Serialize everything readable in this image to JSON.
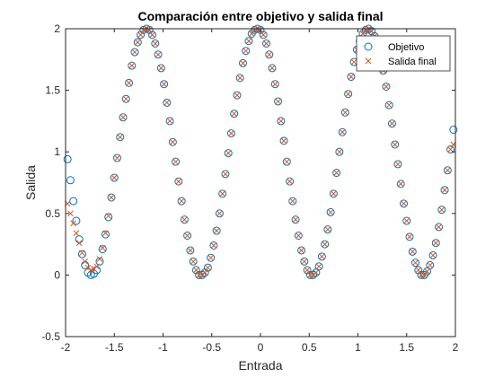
{
  "chart_data": {
    "type": "scatter",
    "title": "Comparación entre objetivo y salida final",
    "xlabel": "Entrada",
    "ylabel": "Salida",
    "xlim": [
      -2,
      2
    ],
    "ylim": [
      -0.5,
      2
    ],
    "x_ticks": [
      "-2",
      "-1.5",
      "-1",
      "-0.5",
      "0",
      "0.5",
      "1",
      "1.5",
      "2"
    ],
    "y_ticks": [
      "-0.5",
      "0",
      "0.5",
      "1",
      "1.5",
      "2"
    ],
    "grid": false,
    "legend_position": "top-right",
    "series": [
      {
        "name": "Objetivo",
        "marker": "circle",
        "color": "#0072BD",
        "x": [
          -1.98,
          -1.95,
          -1.92,
          -1.89,
          -1.86,
          -1.83,
          -1.8,
          -1.77,
          -1.74,
          -1.71,
          -1.68,
          -1.65,
          -1.62,
          -1.59,
          -1.56,
          -1.53,
          -1.5,
          -1.47,
          -1.44,
          -1.41,
          -1.38,
          -1.35,
          -1.32,
          -1.29,
          -1.26,
          -1.23,
          -1.2,
          -1.17,
          -1.14,
          -1.11,
          -1.08,
          -1.05,
          -1.02,
          -0.99,
          -0.96,
          -0.93,
          -0.9,
          -0.87,
          -0.84,
          -0.81,
          -0.78,
          -0.75,
          -0.72,
          -0.69,
          -0.66,
          -0.63,
          -0.6,
          -0.57,
          -0.54,
          -0.51,
          -0.48,
          -0.45,
          -0.42,
          -0.39,
          -0.36,
          -0.33,
          -0.3,
          -0.27,
          -0.24,
          -0.21,
          -0.18,
          -0.15,
          -0.12,
          -0.09,
          -0.06,
          -0.03,
          0.0,
          0.03,
          0.06,
          0.09,
          0.12,
          0.15,
          0.18,
          0.21,
          0.24,
          0.27,
          0.3,
          0.33,
          0.36,
          0.39,
          0.42,
          0.45,
          0.48,
          0.51,
          0.54,
          0.57,
          0.6,
          0.63,
          0.66,
          0.69,
          0.72,
          0.75,
          0.78,
          0.81,
          0.84,
          0.87,
          0.9,
          0.93,
          0.96,
          0.99,
          1.02,
          1.05,
          1.08,
          1.11,
          1.14,
          1.17,
          1.2,
          1.23,
          1.26,
          1.29,
          1.32,
          1.35,
          1.38,
          1.41,
          1.44,
          1.47,
          1.5,
          1.53,
          1.56,
          1.59,
          1.62,
          1.65,
          1.68,
          1.71,
          1.74,
          1.77,
          1.8,
          1.83,
          1.86,
          1.89,
          1.92,
          1.95,
          1.98
        ],
        "y": [
          0.94,
          0.77,
          0.6,
          0.44,
          0.29,
          0.17,
          0.08,
          0.02,
          0.0,
          0.01,
          0.04,
          0.11,
          0.21,
          0.33,
          0.47,
          0.63,
          0.79,
          0.95,
          1.12,
          1.28,
          1.43,
          1.56,
          1.7,
          1.81,
          1.89,
          1.95,
          1.99,
          2.0,
          1.99,
          1.95,
          1.88,
          1.79,
          1.68,
          1.55,
          1.4,
          1.25,
          1.08,
          0.92,
          0.76,
          0.6,
          0.45,
          0.32,
          0.2,
          0.11,
          0.04,
          0.0,
          0.0,
          0.02,
          0.06,
          0.14,
          0.24,
          0.36,
          0.5,
          0.66,
          0.82,
          0.99,
          1.15,
          1.31,
          1.46,
          1.6,
          1.72,
          1.82,
          1.9,
          1.96,
          1.99,
          2.0,
          1.99,
          1.95,
          1.88,
          1.79,
          1.68,
          1.55,
          1.41,
          1.25,
          1.09,
          0.92,
          0.76,
          0.6,
          0.45,
          0.32,
          0.2,
          0.11,
          0.04,
          0.0,
          0.0,
          0.02,
          0.07,
          0.15,
          0.25,
          0.37,
          0.51,
          0.66,
          0.83,
          1.0,
          1.16,
          1.32,
          1.47,
          1.61,
          1.73,
          1.83,
          1.9,
          1.96,
          1.99,
          2.0,
          1.98,
          1.94,
          1.87,
          1.77,
          1.66,
          1.53,
          1.38,
          1.23,
          1.06,
          0.9,
          0.74,
          0.58,
          0.44,
          0.31,
          0.19,
          0.1,
          0.04,
          0.0,
          0.0,
          0.03,
          0.08,
          0.16,
          0.26,
          0.39,
          0.53,
          0.69,
          0.85,
          1.02,
          1.18
        ]
      },
      {
        "name": "Salida final",
        "marker": "x",
        "color": "#D95319",
        "x": [
          -1.98,
          -1.95,
          -1.92,
          -1.89,
          -1.86,
          -1.83,
          -1.8,
          -1.77,
          -1.74,
          -1.71,
          -1.68,
          -1.65,
          -1.62,
          -1.59,
          -1.56,
          -1.53,
          -1.5,
          -1.47,
          -1.44,
          -1.41,
          -1.38,
          -1.35,
          -1.32,
          -1.29,
          -1.26,
          -1.23,
          -1.2,
          -1.17,
          -1.14,
          -1.11,
          -1.08,
          -1.05,
          -1.02,
          -0.99,
          -0.96,
          -0.93,
          -0.9,
          -0.87,
          -0.84,
          -0.81,
          -0.78,
          -0.75,
          -0.72,
          -0.69,
          -0.66,
          -0.63,
          -0.6,
          -0.57,
          -0.54,
          -0.51,
          -0.48,
          -0.45,
          -0.42,
          -0.39,
          -0.36,
          -0.33,
          -0.3,
          -0.27,
          -0.24,
          -0.21,
          -0.18,
          -0.15,
          -0.12,
          -0.09,
          -0.06,
          -0.03,
          0.0,
          0.03,
          0.06,
          0.09,
          0.12,
          0.15,
          0.18,
          0.21,
          0.24,
          0.27,
          0.3,
          0.33,
          0.36,
          0.39,
          0.42,
          0.45,
          0.48,
          0.51,
          0.54,
          0.57,
          0.6,
          0.63,
          0.66,
          0.69,
          0.72,
          0.75,
          0.78,
          0.81,
          0.84,
          0.87,
          0.9,
          0.93,
          0.96,
          0.99,
          1.02,
          1.05,
          1.08,
          1.11,
          1.14,
          1.17,
          1.2,
          1.23,
          1.26,
          1.29,
          1.32,
          1.35,
          1.38,
          1.41,
          1.44,
          1.47,
          1.5,
          1.53,
          1.56,
          1.59,
          1.62,
          1.65,
          1.68,
          1.71,
          1.74,
          1.77,
          1.8,
          1.83,
          1.86,
          1.89,
          1.92,
          1.95,
          1.98
        ],
        "y": [
          0.58,
          0.5,
          0.42,
          0.34,
          0.26,
          0.18,
          0.11,
          0.06,
          0.04,
          0.05,
          0.07,
          0.13,
          0.22,
          0.34,
          0.48,
          0.63,
          0.79,
          0.95,
          1.12,
          1.28,
          1.43,
          1.56,
          1.7,
          1.81,
          1.89,
          1.95,
          1.99,
          2.0,
          1.99,
          1.95,
          1.88,
          1.79,
          1.68,
          1.55,
          1.4,
          1.25,
          1.08,
          0.92,
          0.76,
          0.6,
          0.45,
          0.32,
          0.2,
          0.11,
          0.04,
          0.0,
          0.0,
          0.02,
          0.06,
          0.14,
          0.24,
          0.36,
          0.5,
          0.66,
          0.82,
          0.99,
          1.15,
          1.31,
          1.46,
          1.6,
          1.72,
          1.82,
          1.9,
          1.96,
          1.99,
          2.0,
          1.99,
          1.95,
          1.88,
          1.79,
          1.68,
          1.55,
          1.41,
          1.25,
          1.09,
          0.92,
          0.76,
          0.6,
          0.45,
          0.32,
          0.2,
          0.11,
          0.04,
          0.0,
          0.0,
          0.02,
          0.07,
          0.15,
          0.25,
          0.37,
          0.51,
          0.66,
          0.83,
          1.0,
          1.16,
          1.32,
          1.47,
          1.61,
          1.73,
          1.83,
          1.9,
          1.96,
          1.99,
          2.0,
          1.98,
          1.94,
          1.87,
          1.77,
          1.66,
          1.53,
          1.38,
          1.23,
          1.06,
          0.9,
          0.74,
          0.58,
          0.44,
          0.31,
          0.19,
          0.1,
          0.04,
          0.0,
          0.0,
          0.03,
          0.08,
          0.16,
          0.26,
          0.39,
          0.53,
          0.69,
          0.85,
          1.02,
          1.06
        ]
      }
    ]
  }
}
